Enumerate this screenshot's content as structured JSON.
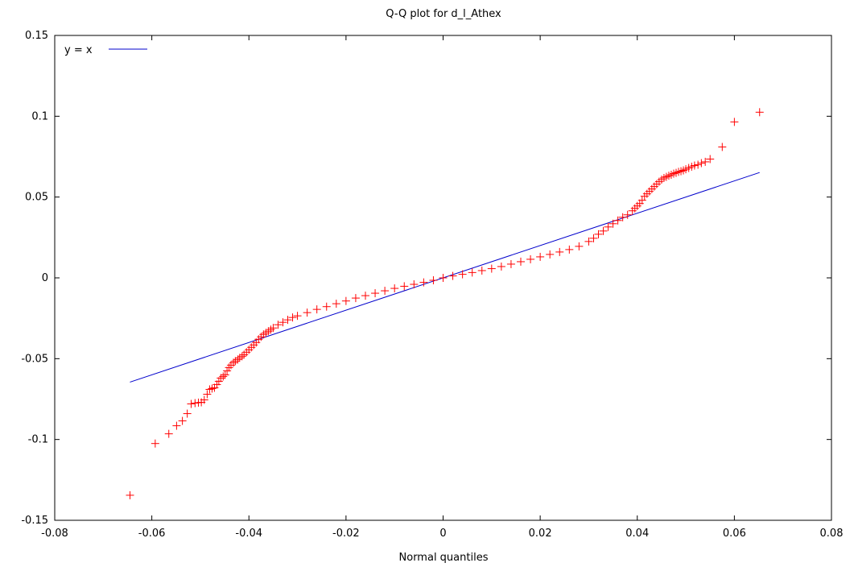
{
  "chart_data": {
    "type": "scatter",
    "title": "Q-Q plot for d_l_Athex",
    "xlabel": "Normal quantiles",
    "ylabel": "",
    "xlim": [
      -0.08,
      0.08
    ],
    "ylim": [
      -0.15,
      0.15
    ],
    "x_ticks": [
      -0.08,
      -0.06,
      -0.04,
      -0.02,
      0,
      0.02,
      0.04,
      0.06,
      0.08
    ],
    "y_ticks": [
      -0.15,
      -0.1,
      -0.05,
      0,
      0.05,
      0.1,
      0.15
    ],
    "x_tick_labels": [
      "-0.08",
      "-0.06",
      "-0.04",
      "-0.02",
      "0",
      "0.02",
      "0.04",
      "0.06",
      "0.08"
    ],
    "y_tick_labels": [
      "-0.15",
      "-0.1",
      "-0.05",
      "0",
      "0.05",
      "0.1",
      "0.15"
    ],
    "grid": false,
    "legend": {
      "placement": "top-left",
      "entries": [
        {
          "label": "y = x",
          "color": "#0000cc"
        }
      ]
    },
    "reference_line": {
      "name": "y = x",
      "x": [
        -0.0645,
        0.0652
      ],
      "y": [
        -0.0645,
        0.0652
      ],
      "color": "#0000cc"
    },
    "points": {
      "color": "#ff0000",
      "marker": "plus",
      "x": [
        -0.0645,
        -0.0593,
        -0.0565,
        -0.0549,
        -0.0537,
        -0.0527,
        -0.0519,
        -0.0511,
        -0.0504,
        -0.0498,
        -0.0492,
        -0.0486,
        -0.0481,
        -0.0476,
        -0.0471,
        -0.0466,
        -0.0462,
        -0.0458,
        -0.0453,
        -0.0449,
        -0.0445,
        -0.0441,
        -0.0437,
        -0.0432,
        -0.0428,
        -0.0423,
        -0.0419,
        -0.0414,
        -0.041,
        -0.0405,
        -0.04,
        -0.0395,
        -0.039,
        -0.0385,
        -0.038,
        -0.0375,
        -0.037,
        -0.0365,
        -0.036,
        -0.0355,
        -0.035,
        -0.034,
        -0.033,
        -0.032,
        -0.031,
        -0.03,
        -0.028,
        -0.026,
        -0.024,
        -0.022,
        -0.02,
        -0.018,
        -0.016,
        -0.014,
        -0.012,
        -0.01,
        -0.008,
        -0.006,
        -0.004,
        -0.002,
        0,
        0.002,
        0.004,
        0.006,
        0.008,
        0.01,
        0.012,
        0.014,
        0.016,
        0.018,
        0.02,
        0.022,
        0.024,
        0.026,
        0.028,
        0.03,
        0.031,
        0.032,
        0.033,
        0.034,
        0.035,
        0.036,
        0.037,
        0.038,
        0.039,
        0.0395,
        0.04,
        0.0405,
        0.041,
        0.0415,
        0.042,
        0.0425,
        0.043,
        0.0435,
        0.044,
        0.0445,
        0.045,
        0.0455,
        0.046,
        0.0465,
        0.047,
        0.0475,
        0.048,
        0.0485,
        0.049,
        0.0495,
        0.05,
        0.0506,
        0.0512,
        0.0518,
        0.0525,
        0.0532,
        0.054,
        0.055,
        0.0575,
        0.06,
        0.0652
      ],
      "y": [
        -0.1345,
        -0.1025,
        -0.0965,
        -0.0915,
        -0.0885,
        -0.084,
        -0.078,
        -0.0775,
        -0.0772,
        -0.077,
        -0.0755,
        -0.072,
        -0.069,
        -0.0685,
        -0.068,
        -0.066,
        -0.064,
        -0.062,
        -0.061,
        -0.06,
        -0.0575,
        -0.0555,
        -0.054,
        -0.0525,
        -0.0515,
        -0.0505,
        -0.0495,
        -0.0485,
        -0.0475,
        -0.046,
        -0.0445,
        -0.043,
        -0.0415,
        -0.04,
        -0.038,
        -0.0365,
        -0.035,
        -0.034,
        -0.033,
        -0.032,
        -0.031,
        -0.029,
        -0.0275,
        -0.026,
        -0.0245,
        -0.0235,
        -0.0215,
        -0.0195,
        -0.0178,
        -0.016,
        -0.0143,
        -0.0125,
        -0.011,
        -0.0095,
        -0.008,
        -0.0065,
        -0.0052,
        -0.004,
        -0.0028,
        -0.0015,
        0,
        0.0012,
        0.0022,
        0.0033,
        0.0045,
        0.0057,
        0.007,
        0.0085,
        0.01,
        0.0115,
        0.013,
        0.0145,
        0.016,
        0.0175,
        0.0195,
        0.0225,
        0.0245,
        0.027,
        0.029,
        0.0315,
        0.0335,
        0.0355,
        0.0375,
        0.039,
        0.0415,
        0.043,
        0.0445,
        0.046,
        0.048,
        0.0505,
        0.052,
        0.0535,
        0.055,
        0.0565,
        0.058,
        0.0595,
        0.0608,
        0.0618,
        0.0625,
        0.0632,
        0.0638,
        0.0645,
        0.065,
        0.0656,
        0.066,
        0.0665,
        0.0672,
        0.068,
        0.0688,
        0.0695,
        0.07,
        0.071,
        0.0718,
        0.0735,
        0.081,
        0.0965,
        0.1025
      ]
    }
  }
}
